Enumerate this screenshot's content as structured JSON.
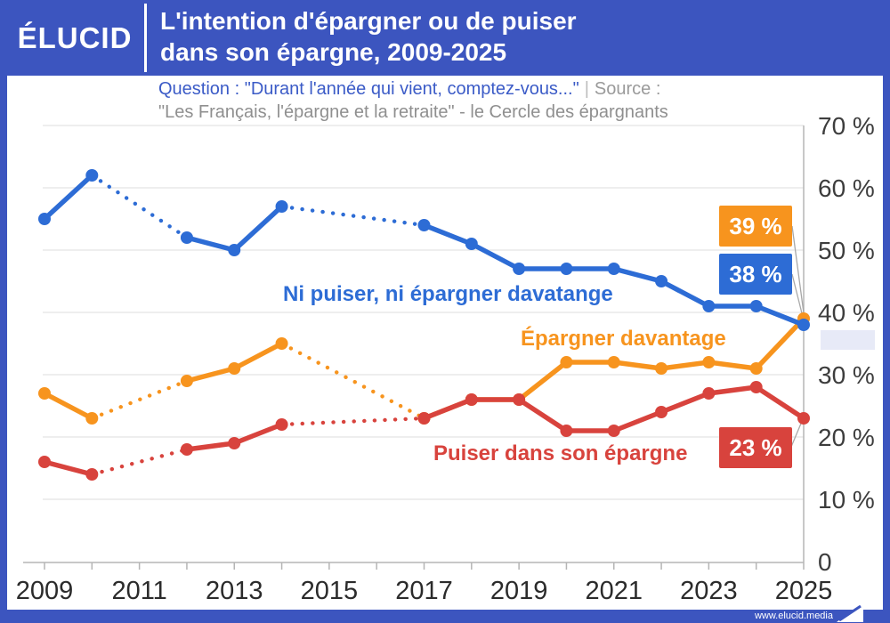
{
  "header": {
    "logo": "ÉLUCID",
    "title_line1": "L'intention d'épargner ou de puiser",
    "title_line2": "dans son épargne, 2009-2025"
  },
  "subtitle": {
    "question": "Question : \"Durant l'année qui vient, comptez-vous...\"",
    "separator": "|",
    "source_label": "Source :",
    "source_text": "\"Les Français, l'épargne et la retraite\" - le Cercle des épargnants"
  },
  "footer": {
    "url": "www.elucid.media"
  },
  "colors": {
    "header_blue": "#3c55bf",
    "line_blue": "#2d6cd5",
    "line_orange": "#f7941e",
    "line_red": "#d8433d",
    "grid": "#e9e9e9",
    "axis": "#b5b5b5",
    "tick_text": "#3d3d3d",
    "year_text": "#2b2b2b",
    "connector": "#a8a8a8"
  },
  "chart_data": {
    "type": "line",
    "title": "L'intention d'épargner ou de puiser dans son épargne, 2009-2025",
    "x": [
      2009,
      2010,
      2011,
      2012,
      2013,
      2014,
      2015,
      2016,
      2017,
      2018,
      2019,
      2020,
      2021,
      2022,
      2023,
      2024,
      2025
    ],
    "x_tick_labels": [
      "2009",
      "2011",
      "2013",
      "2015",
      "2017",
      "2019",
      "2021",
      "2023",
      "2025"
    ],
    "ylim": [
      0,
      70
    ],
    "grid": true,
    "y_ticks": [
      {
        "value": 70,
        "label": "70 %"
      },
      {
        "value": 60,
        "label": "60 %"
      },
      {
        "value": 50,
        "label": "50 %"
      },
      {
        "value": 40,
        "label": "40 %"
      },
      {
        "value": 30,
        "label": "30 %"
      },
      {
        "value": 20,
        "label": "20 %"
      },
      {
        "value": 10,
        "label": "10 %"
      },
      {
        "value": 0,
        "label": "0"
      }
    ],
    "dotted_gap_years": [
      2011,
      2015,
      2016
    ],
    "series": [
      {
        "name": "Ni puiser, ni épargner davatange",
        "color": "#2d6cd5",
        "end_label": "38 %",
        "values": [
          55,
          62,
          null,
          52,
          50,
          57,
          null,
          null,
          54,
          51,
          47,
          47,
          47,
          45,
          41,
          41,
          38
        ]
      },
      {
        "name": "Épargner davantage",
        "color": "#f7941e",
        "end_label": "39 %",
        "values": [
          27,
          23,
          null,
          29,
          31,
          35,
          null,
          null,
          23,
          26,
          26,
          32,
          32,
          31,
          32,
          31,
          39
        ]
      },
      {
        "name": "Puiser dans son épargne",
        "color": "#d8433d",
        "end_label": "23 %",
        "values": [
          16,
          14,
          null,
          18,
          19,
          22,
          null,
          null,
          23,
          26,
          26,
          21,
          21,
          24,
          27,
          28,
          23
        ]
      }
    ]
  }
}
